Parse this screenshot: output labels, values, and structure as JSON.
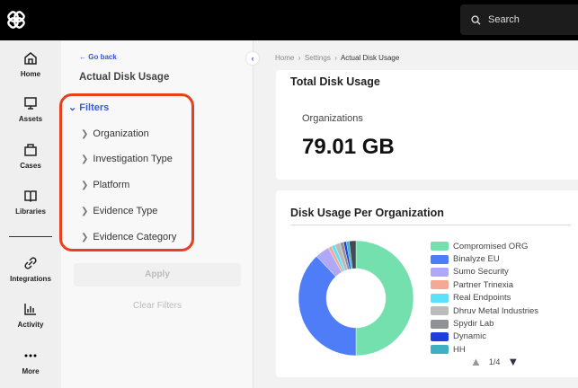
{
  "search": {
    "placeholder": "Search"
  },
  "nav": [
    {
      "label": "Home",
      "icon": "home-icon"
    },
    {
      "label": "Assets",
      "icon": "monitor-icon"
    },
    {
      "label": "Cases",
      "icon": "briefcase-icon"
    },
    {
      "label": "Libraries",
      "icon": "book-icon"
    },
    {
      "label": "Integrations",
      "icon": "link-icon"
    },
    {
      "label": "Activity",
      "icon": "chart-icon"
    },
    {
      "label": "More",
      "icon": "more-icon"
    }
  ],
  "panel": {
    "go_back": "Go back",
    "title": "Actual Disk Usage",
    "filters_label": "Filters",
    "filters": [
      "Organization",
      "Investigation Type",
      "Platform",
      "Evidence Type",
      "Evidence Category"
    ],
    "apply": "Apply",
    "clear": "Clear Filters"
  },
  "breadcrumb": [
    "Home",
    "Settings",
    "Actual Disk Usage"
  ],
  "total": {
    "title": "Total Disk Usage",
    "label": "Organizations",
    "value": "79.01 GB"
  },
  "chart": {
    "title": "Disk Usage Per Organization",
    "page": "1/4"
  },
  "chart_data": {
    "type": "pie",
    "donut": true,
    "series": [
      {
        "name": "Compromised ORG",
        "value": 50,
        "color": "#74e0ae"
      },
      {
        "name": "Binalyze EU",
        "value": 38,
        "color": "#4f7cf7"
      },
      {
        "name": "Sumo Security",
        "value": 4,
        "color": "#aea8f7"
      },
      {
        "name": "Partner Trinexia",
        "value": 1,
        "color": "#f4a896"
      },
      {
        "name": "Real Endpoints",
        "value": 1,
        "color": "#5ce1fb"
      },
      {
        "name": "Dhruv Metal Industries",
        "value": 1.5,
        "color": "#bbbbbb"
      },
      {
        "name": "Spydir Lab",
        "value": 1,
        "color": "#8f9194"
      },
      {
        "name": "Dynamic",
        "value": 0.8,
        "color": "#1d3fe0"
      },
      {
        "name": "HH",
        "value": 0.8,
        "color": "#3fb0c4"
      },
      {
        "name": "",
        "value": 1.9,
        "color": "#444a55"
      }
    ]
  }
}
